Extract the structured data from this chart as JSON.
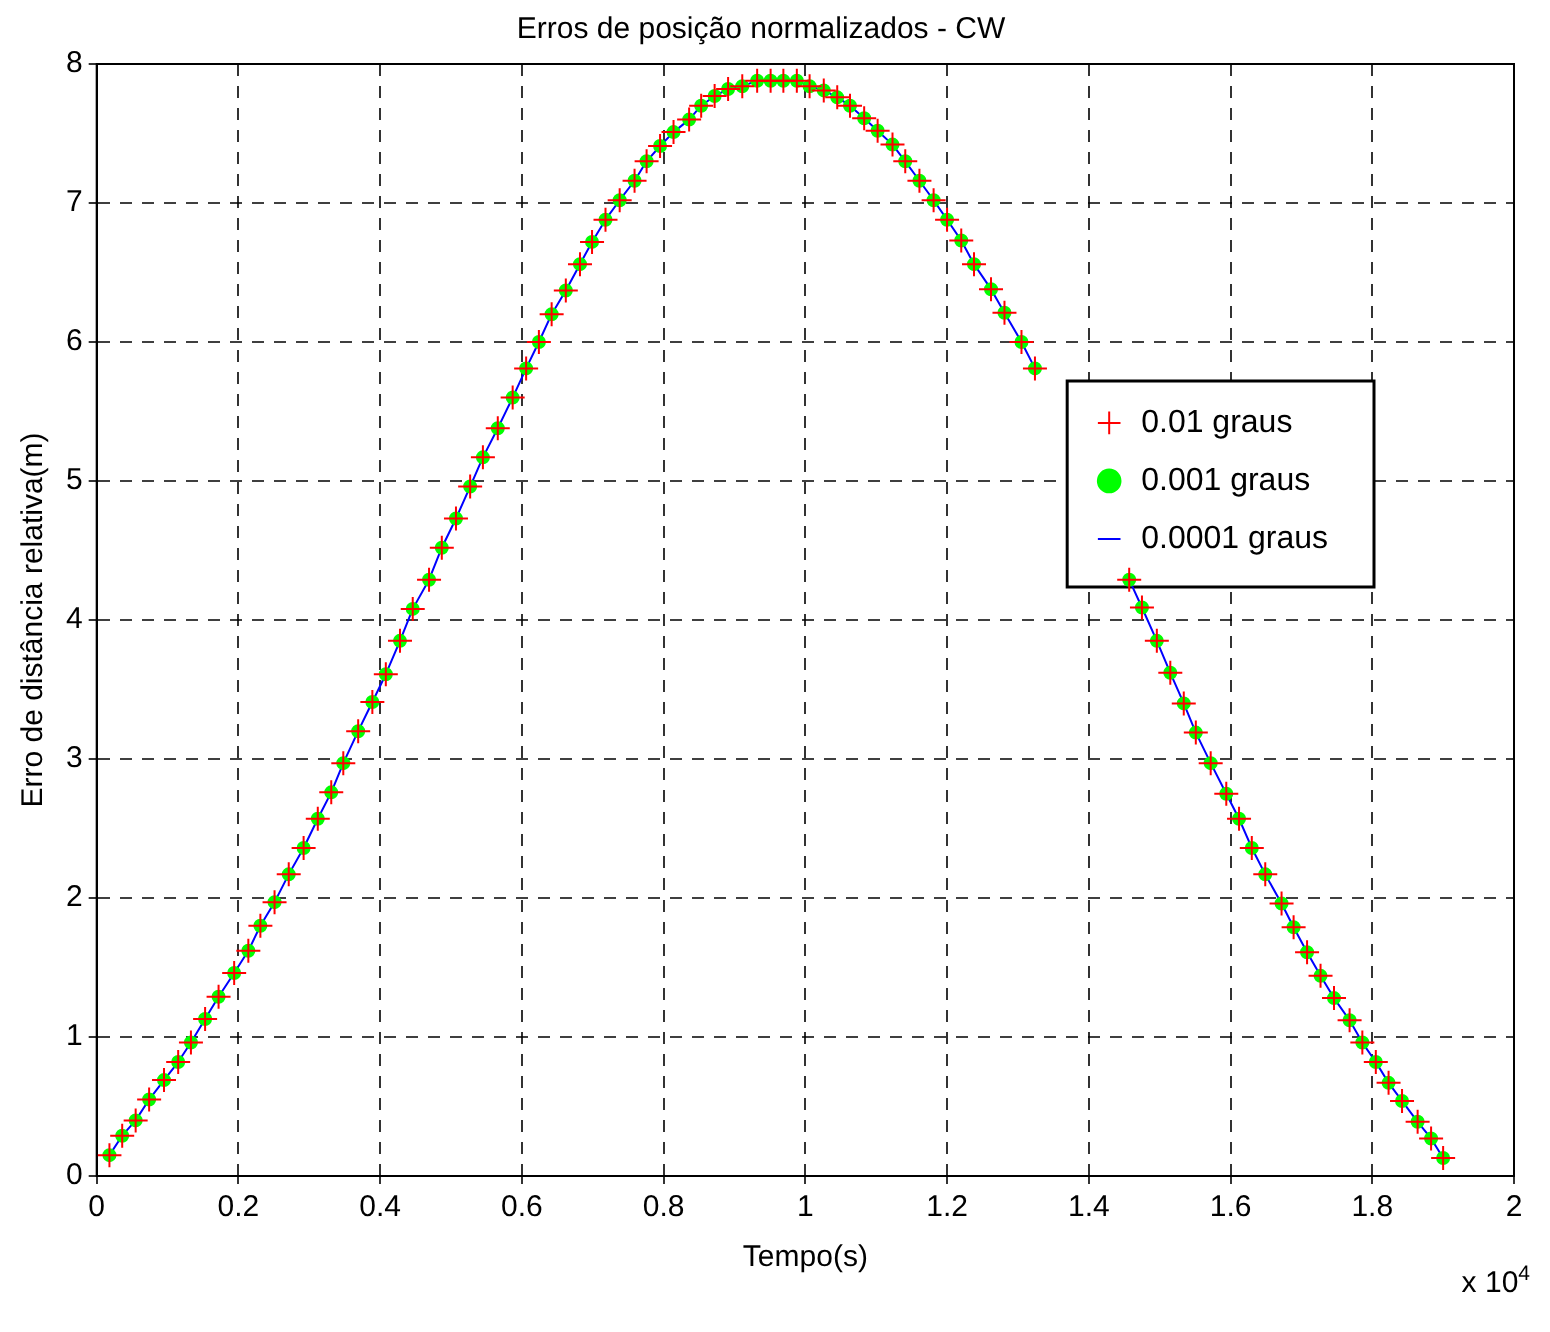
{
  "chart_data": {
    "type": "scatter",
    "title": "Erros de posição normalizados - CW",
    "xlabel": "Tempo(s)",
    "ylabel": "Erro de distância relativa(m)",
    "annotations": [
      "x 10$^{4}$"
    ],
    "x": [
      0.018,
      0.036,
      0.055,
      0.074,
      0.095,
      0.115,
      0.133,
      0.153,
      0.172,
      0.194,
      0.214,
      0.231,
      0.251,
      0.271,
      0.292,
      0.312,
      0.331,
      0.348,
      0.369,
      0.389,
      0.408,
      0.428,
      0.446,
      0.469,
      0.487,
      0.507,
      0.527,
      0.545,
      0.566,
      0.587,
      0.606,
      0.624,
      0.642,
      0.662,
      0.682,
      0.699,
      0.718,
      0.738,
      0.759,
      0.776,
      0.795,
      0.814,
      0.836,
      0.853,
      0.872,
      0.891,
      0.911,
      0.932,
      0.951,
      0.969,
      0.988,
      1.006,
      1.026,
      1.045,
      1.063,
      1.083,
      1.102,
      1.123,
      1.141,
      1.161,
      1.181,
      1.2,
      1.22,
      1.238,
      1.262,
      1.281,
      1.305,
      1.324,
      1.343,
      1.363,
      1.382,
      1.401,
      1.42,
      1.44,
      1.457,
      1.475,
      1.496,
      1.515,
      1.534,
      1.551,
      1.572,
      1.594,
      1.612,
      1.63,
      1.649,
      1.672,
      1.689,
      1.708,
      1.727,
      1.746,
      1.768,
      1.786,
      1.805,
      1.823,
      1.842,
      1.864,
      1.883,
      1.9
    ],
    "series": [
      {
        "name": "0.01 graus",
        "type": "scatter",
        "marker": "cross",
        "color": "#ff0000",
        "values": [
          0.15,
          0.29,
          0.4,
          0.55,
          0.69,
          0.82,
          0.96,
          1.13,
          1.29,
          1.46,
          1.62,
          1.8,
          1.97,
          2.17,
          2.36,
          2.57,
          2.76,
          2.97,
          3.2,
          3.41,
          3.61,
          3.85,
          4.08,
          4.29,
          4.52,
          4.73,
          4.96,
          5.17,
          5.38,
          5.6,
          5.81,
          6.0,
          6.2,
          6.37,
          6.56,
          6.72,
          6.88,
          7.02,
          7.16,
          7.3,
          7.41,
          7.51,
          7.6,
          7.7,
          7.77,
          7.82,
          7.84,
          7.88,
          7.88,
          7.88,
          7.88,
          7.84,
          7.81,
          7.76,
          7.7,
          7.61,
          7.52,
          7.42,
          7.3,
          7.16,
          7.02,
          6.88,
          6.73,
          6.56,
          6.38,
          6.21,
          6.0,
          5.81,
          null,
          null,
          null,
          null,
          null,
          null,
          4.29,
          4.09,
          3.85,
          3.62,
          3.4,
          3.19,
          2.97,
          2.75,
          2.57,
          2.36,
          2.17,
          1.96,
          1.79,
          1.61,
          1.44,
          1.28,
          1.12,
          0.96,
          0.82,
          0.67,
          0.54,
          0.39,
          0.27,
          0.13
        ]
      },
      {
        "name": "0.001 graus",
        "type": "scatter",
        "marker": "circle",
        "color": "#00ff00",
        "values": [
          0.15,
          0.29,
          0.4,
          0.55,
          0.69,
          0.82,
          0.96,
          1.13,
          1.29,
          1.46,
          1.62,
          1.8,
          1.97,
          2.17,
          2.36,
          2.57,
          2.76,
          2.97,
          3.2,
          3.41,
          3.61,
          3.85,
          4.08,
          4.29,
          4.52,
          4.73,
          4.96,
          5.17,
          5.38,
          5.6,
          5.81,
          6.0,
          6.2,
          6.37,
          6.56,
          6.72,
          6.88,
          7.02,
          7.16,
          7.3,
          7.41,
          7.51,
          7.6,
          7.7,
          7.77,
          7.82,
          7.84,
          7.88,
          7.88,
          7.88,
          7.88,
          7.84,
          7.81,
          7.76,
          7.7,
          7.61,
          7.52,
          7.42,
          7.3,
          7.16,
          7.02,
          6.88,
          6.73,
          6.56,
          6.38,
          6.21,
          6.0,
          5.81,
          null,
          null,
          null,
          null,
          null,
          null,
          4.29,
          4.09,
          3.85,
          3.62,
          3.4,
          3.19,
          2.97,
          2.75,
          2.57,
          2.36,
          2.17,
          1.96,
          1.79,
          1.61,
          1.44,
          1.28,
          1.12,
          0.96,
          0.82,
          0.67,
          0.54,
          0.39,
          0.27,
          0.13
        ]
      },
      {
        "name": "0.0001 graus",
        "type": "line",
        "marker": "none",
        "line_style": "solid",
        "color": "#0000ff",
        "values": [
          0.15,
          0.29,
          0.4,
          0.55,
          0.69,
          0.82,
          0.96,
          1.13,
          1.29,
          1.46,
          1.62,
          1.8,
          1.97,
          2.17,
          2.36,
          2.57,
          2.76,
          2.97,
          3.2,
          3.41,
          3.61,
          3.85,
          4.08,
          4.29,
          4.52,
          4.73,
          4.96,
          5.17,
          5.38,
          5.6,
          5.81,
          6.0,
          6.2,
          6.37,
          6.56,
          6.72,
          6.88,
          7.02,
          7.16,
          7.3,
          7.41,
          7.51,
          7.6,
          7.7,
          7.77,
          7.82,
          7.84,
          7.88,
          7.88,
          7.88,
          7.88,
          7.84,
          7.81,
          7.76,
          7.7,
          7.61,
          7.52,
          7.42,
          7.3,
          7.16,
          7.02,
          6.88,
          6.73,
          6.56,
          6.38,
          6.21,
          6.0,
          5.81,
          null,
          null,
          null,
          null,
          null,
          null,
          4.29,
          4.09,
          3.85,
          3.62,
          3.4,
          3.19,
          2.97,
          2.75,
          2.57,
          2.36,
          2.17,
          1.96,
          1.79,
          1.61,
          1.44,
          1.28,
          1.12,
          0.96,
          0.82,
          0.67,
          0.54,
          0.39,
          0.27,
          0.13
        ]
      }
    ],
    "xlim": [
      0,
      2
    ],
    "xticks": [
      0,
      0.2,
      0.4,
      0.6,
      0.8,
      1,
      1.2,
      1.4,
      1.6,
      1.8,
      2
    ],
    "ylim": [
      0,
      8
    ],
    "yticks": [
      0,
      1,
      2,
      3,
      4,
      5,
      6,
      7,
      8
    ],
    "grid": true,
    "legend": "right"
  }
}
